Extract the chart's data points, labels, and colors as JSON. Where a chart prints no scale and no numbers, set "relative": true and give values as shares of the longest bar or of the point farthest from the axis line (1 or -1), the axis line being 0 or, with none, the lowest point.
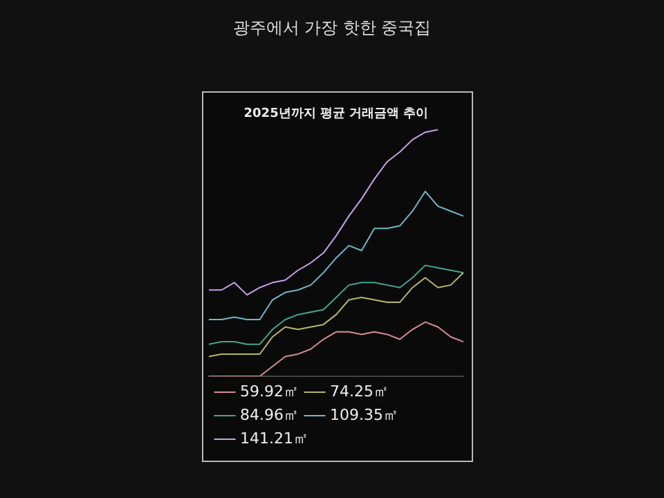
{
  "chart_data": {
    "type": "line",
    "title": "2025년까지 평균 거래금액 추이",
    "annotations": [
      "광주에서 가장 핫한 중국집"
    ],
    "relative": true,
    "grid": false,
    "legend": "bottom",
    "marker": "none",
    "categories": [
      null,
      null,
      null,
      null,
      null,
      null,
      null,
      null,
      null,
      null,
      null,
      null,
      null,
      null,
      null,
      null,
      null,
      null,
      null,
      null,
      null
    ],
    "series": [
      {
        "name": "59.92㎡",
        "color": "#d98a9a",
        "values": [
          0,
          0,
          0,
          0,
          0,
          0.04,
          0.08,
          0.09,
          0.11,
          0.15,
          0.18,
          0.18,
          0.17,
          0.18,
          0.17,
          0.15,
          0.19,
          0.22,
          0.2,
          0.16,
          0.14
        ]
      },
      {
        "name": "74.25㎡",
        "color": "#b8b860",
        "values": [
          0.08,
          0.09,
          0.09,
          0.09,
          0.09,
          0.16,
          0.2,
          0.19,
          0.2,
          0.21,
          0.25,
          0.31,
          0.32,
          0.31,
          0.3,
          0.3,
          0.36,
          0.4,
          0.36,
          0.37,
          0.42
        ]
      },
      {
        "name": "84.96㎡",
        "color": "#40a890",
        "values": [
          0.13,
          0.14,
          0.14,
          0.13,
          0.13,
          0.19,
          0.23,
          0.25,
          0.26,
          0.27,
          0.32,
          0.37,
          0.38,
          0.38,
          0.37,
          0.36,
          0.4,
          0.45,
          0.44,
          0.43,
          0.42
        ]
      },
      {
        "name": "109.35㎡",
        "color": "#70b8c8",
        "values": [
          0.23,
          0.23,
          0.24,
          0.23,
          0.23,
          0.31,
          0.34,
          0.35,
          0.37,
          0.42,
          0.48,
          0.53,
          0.51,
          0.6,
          0.6,
          0.61,
          0.67,
          0.75,
          0.69,
          0.67,
          0.65
        ]
      },
      {
        "name": "141.21㎡",
        "color": "#c8a0e8",
        "values": [
          0.35,
          0.35,
          0.38,
          0.33,
          0.36,
          0.38,
          0.39,
          0.43,
          0.46,
          0.5,
          0.57,
          0.65,
          0.72,
          0.8,
          0.87,
          0.91,
          0.96,
          0.99,
          1,
          null,
          null
        ]
      }
    ]
  }
}
